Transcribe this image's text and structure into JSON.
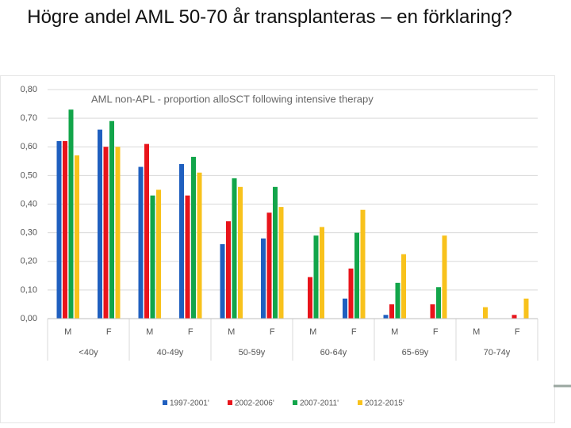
{
  "slide_title": "Högre andel AML 50-70 år transplanteras – en förklaring?",
  "chart_data": {
    "type": "bar",
    "title": "AML non-APL - proportion alloSCT following intensive therapy",
    "categories": [
      "M",
      "F",
      "M",
      "F",
      "M",
      "F",
      "M",
      "F",
      "M",
      "F",
      "M",
      "F"
    ],
    "category_groups": [
      "<40y",
      "40-49y",
      "50-59y",
      "60-64y",
      "65-69y",
      "70-74y"
    ],
    "series": [
      {
        "name": "1997-2001'",
        "color": "#1f5fbf",
        "values": [
          0.62,
          0.66,
          0.53,
          0.54,
          0.26,
          0.28,
          null,
          0.07,
          0.013,
          null,
          null,
          null
        ]
      },
      {
        "name": "2002-2006'",
        "color": "#e8141b",
        "values": [
          0.62,
          0.6,
          0.61,
          0.43,
          0.34,
          0.37,
          0.145,
          0.175,
          0.05,
          0.05,
          null,
          0.013
        ]
      },
      {
        "name": "2007-2011'",
        "color": "#12a54a",
        "values": [
          0.73,
          0.69,
          0.43,
          0.565,
          0.49,
          0.46,
          0.29,
          0.3,
          0.125,
          0.11,
          null,
          null
        ]
      },
      {
        "name": "2012-2015'",
        "color": "#f8c21c",
        "values": [
          0.57,
          0.6,
          0.45,
          0.51,
          0.46,
          0.39,
          0.32,
          0.38,
          0.225,
          0.29,
          0.04,
          0.07
        ]
      }
    ],
    "ylim": [
      0,
      0.8
    ],
    "yticks": [
      {
        "value": 0,
        "label": "0,00"
      },
      {
        "value": 0.1,
        "label": "0,10"
      },
      {
        "value": 0.2,
        "label": "0,20"
      },
      {
        "value": 0.3,
        "label": "0,30"
      },
      {
        "value": 0.4,
        "label": "0,40"
      },
      {
        "value": 0.5,
        "label": "0,50"
      },
      {
        "value": 0.6,
        "label": "0,60"
      },
      {
        "value": 0.7,
        "label": "0,70"
      },
      {
        "value": 0.8,
        "label": "0,80"
      }
    ],
    "grid": true,
    "legend": "bottom"
  }
}
